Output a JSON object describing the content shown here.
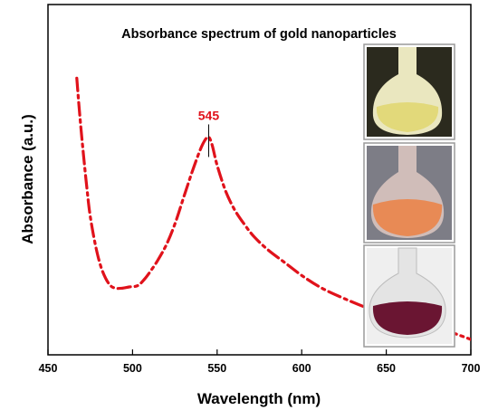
{
  "chart_data": {
    "type": "line",
    "title": "Absorbance spectrum of gold nanoparticles",
    "xlabel": "Wavelength (nm)",
    "ylabel": "Absorbance (a.u.)",
    "xlim": [
      450,
      700
    ],
    "ylim": [
      0,
      1
    ],
    "xticks": [
      "450",
      "500",
      "550",
      "600",
      "650",
      "700"
    ],
    "grid": false,
    "line_style": "dash-dot",
    "series": [
      {
        "color": "#e0121b",
        "x": [
          467,
          469,
          471,
          473,
          475,
          478,
          481,
          484,
          487,
          490,
          494,
          498,
          503,
          507,
          511,
          515,
          520,
          525,
          530,
          535,
          540,
          543,
          545,
          547,
          550,
          555,
          560,
          566,
          572,
          580,
          590,
          600,
          612,
          625,
          640,
          655,
          670,
          685,
          700
        ],
        "y": [
          1.02,
          0.86,
          0.72,
          0.59,
          0.48,
          0.37,
          0.29,
          0.24,
          0.21,
          0.2,
          0.2,
          0.205,
          0.21,
          0.235,
          0.27,
          0.31,
          0.37,
          0.45,
          0.55,
          0.65,
          0.74,
          0.78,
          0.79,
          0.76,
          0.68,
          0.58,
          0.51,
          0.45,
          0.4,
          0.35,
          0.3,
          0.25,
          0.2,
          0.16,
          0.12,
          0.09,
          0.06,
          0.035,
          0.0
        ]
      }
    ],
    "annotations": [
      {
        "text": "545",
        "x": 545,
        "color": "#e0121b"
      }
    ]
  }
}
